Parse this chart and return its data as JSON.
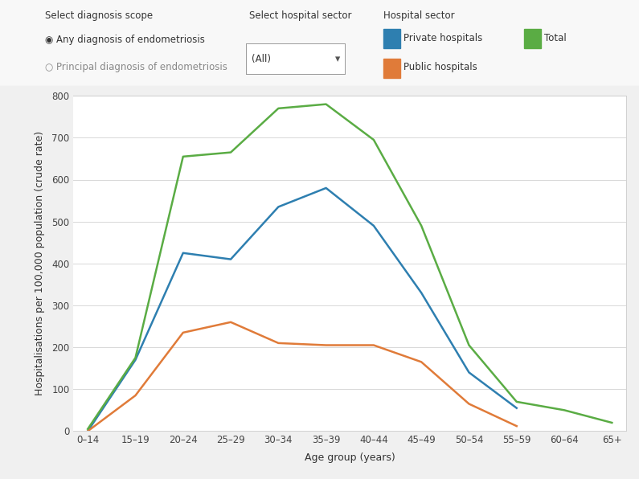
{
  "age_groups": [
    "0–14",
    "15–19",
    "20–24",
    "25–29",
    "30–34",
    "35–39",
    "40–44",
    "45–49",
    "50–54",
    "55–59",
    "60–64",
    "65+"
  ],
  "private": [
    0,
    170,
    425,
    410,
    535,
    580,
    490,
    330,
    140,
    55,
    null,
    null
  ],
  "public": [
    0,
    85,
    235,
    260,
    210,
    205,
    205,
    165,
    65,
    12,
    null,
    null
  ],
  "total": [
    5,
    175,
    655,
    665,
    770,
    780,
    695,
    490,
    205,
    70,
    50,
    20
  ],
  "private_color": "#2e7fb0",
  "public_color": "#e07b39",
  "total_color": "#5aac44",
  "ylabel": "Hospitalisations per 100,000 population (crude rate)",
  "xlabel": "Age group (years)",
  "ylim": [
    0,
    800
  ],
  "yticks": [
    0,
    100,
    200,
    300,
    400,
    500,
    600,
    700,
    800
  ],
  "legend_private": "Private hospitals",
  "legend_public": "Public hospitals",
  "legend_total": "Total",
  "legend_title": "Hospital sector",
  "bg_color": "#f0f0f0",
  "plot_bg": "#ffffff",
  "line_width": 1.8,
  "grid_color": "#d8d8d8",
  "header_diag_title": "Select diagnosis scope",
  "header_diag_1": "◉ Any diagnosis of endometriosis",
  "header_diag_2": "○ Principal diagnosis of endometriosis",
  "header_hosp_title": "Select hospital sector",
  "header_hosp_val": "(All)",
  "tick_fontsize": 8.5,
  "label_fontsize": 9,
  "header_fontsize": 8.5
}
